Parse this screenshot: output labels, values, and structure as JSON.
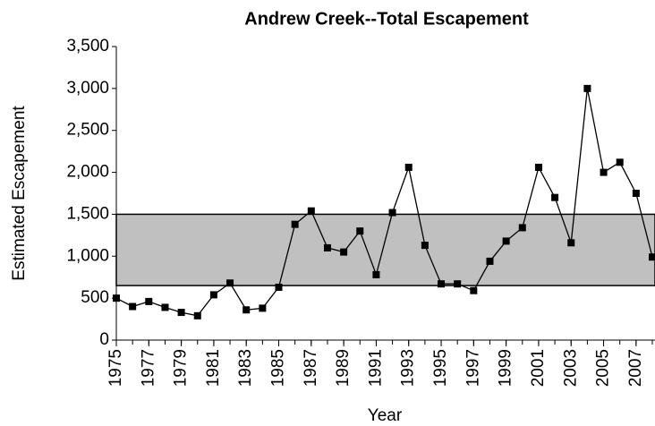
{
  "chart_data": {
    "type": "line",
    "title": "Andrew Creek--Total Escapement",
    "x_label": "Year",
    "y_label": "Estimated Escapement",
    "x": [
      1975,
      1976,
      1977,
      1978,
      1979,
      1980,
      1981,
      1982,
      1983,
      1984,
      1985,
      1986,
      1987,
      1988,
      1989,
      1990,
      1991,
      1992,
      1993,
      1994,
      1995,
      1996,
      1997,
      1998,
      1999,
      2000,
      2001,
      2002,
      2003,
      2004,
      2005,
      2006,
      2007,
      2008
    ],
    "series": [
      {
        "name": "Total Escapement",
        "color": "#000000",
        "values": [
          500,
          400,
          460,
          390,
          330,
          290,
          540,
          680,
          360,
          380,
          630,
          1380,
          1540,
          1100,
          1050,
          1300,
          780,
          1520,
          2060,
          1130,
          670,
          670,
          590,
          940,
          1180,
          1340,
          2060,
          1700,
          1160,
          3000,
          2000,
          2120,
          1750,
          990
        ]
      }
    ],
    "band": [
      650,
      1500
    ],
    "band_color": "#c0c0c0",
    "xlim": [
      1975,
      2008
    ],
    "xticks": [
      1975,
      1977,
      1979,
      1981,
      1983,
      1985,
      1987,
      1989,
      1991,
      1993,
      1995,
      1997,
      1999,
      2001,
      2003,
      2005,
      2007
    ],
    "ylim": [
      0,
      3500
    ],
    "yticks": [
      0,
      500,
      {
        "value": 1000,
        "label": "1,000"
      },
      {
        "value": 1500,
        "label": "1,500"
      },
      {
        "value": 2000,
        "label": "2,000"
      },
      {
        "value": 2500,
        "label": "2,500"
      },
      {
        "value": 3000,
        "label": "3,000"
      },
      {
        "value": 3500,
        "label": "3,500"
      }
    ]
  }
}
